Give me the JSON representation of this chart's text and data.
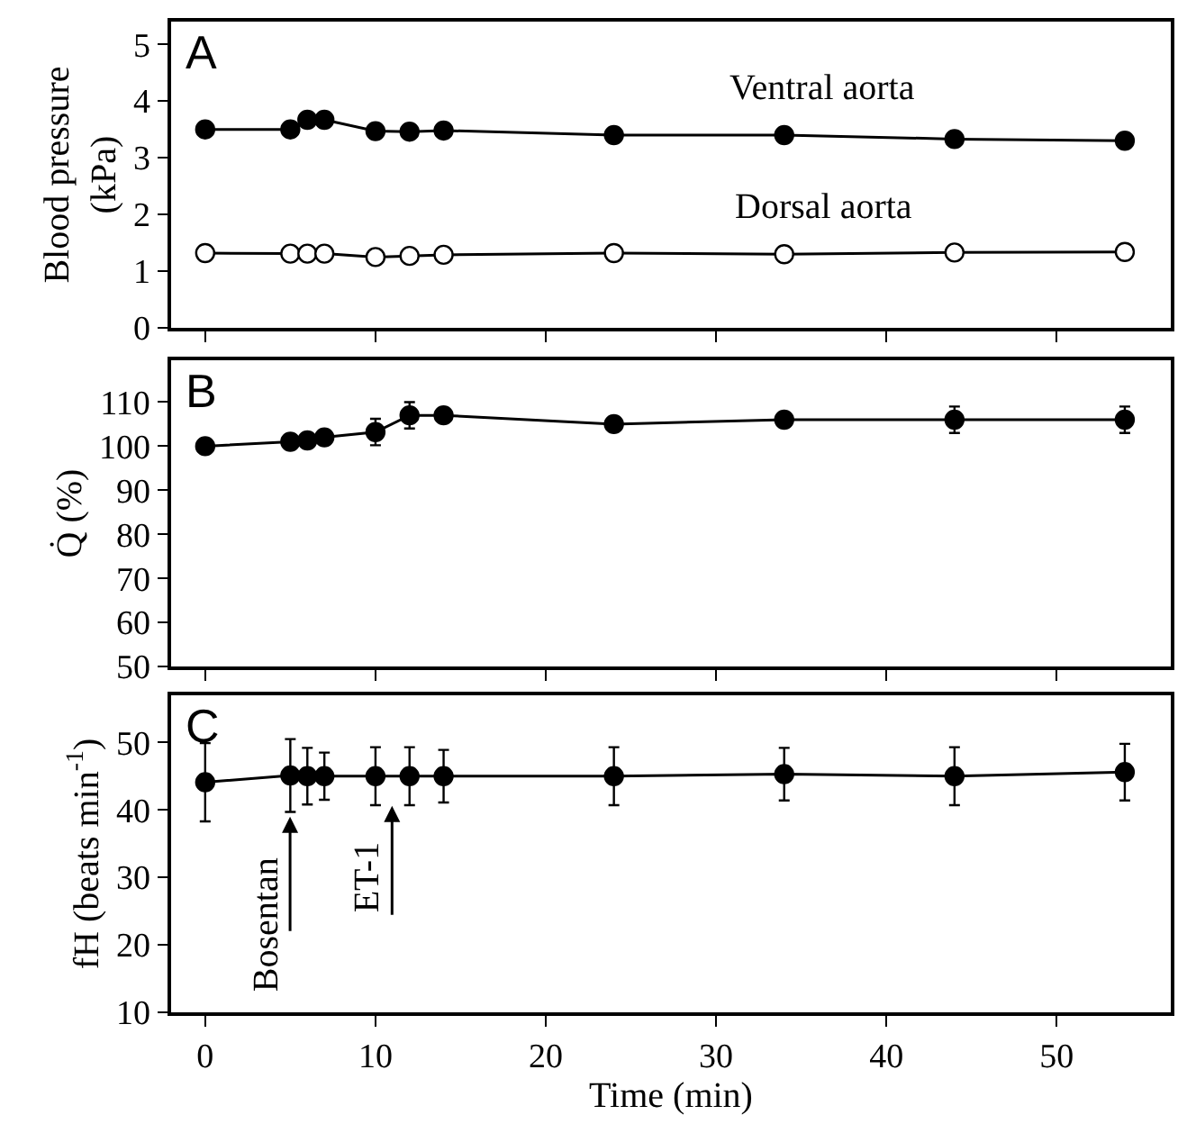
{
  "chart_data": [
    {
      "type": "line",
      "title": "A",
      "ylabel": "Blood pressure\n(kPa)",
      "x": [
        0,
        5,
        6,
        7,
        10,
        12,
        14,
        24,
        34,
        44,
        54
      ],
      "xlim": [
        -2,
        56.7
      ],
      "xticks": [
        {
          "value": 0,
          "label": null
        },
        {
          "value": 10,
          "label": null
        },
        {
          "value": 20,
          "label": null
        },
        {
          "value": 30,
          "label": null
        },
        {
          "value": 40,
          "label": null
        },
        {
          "value": 50,
          "label": null
        }
      ],
      "ylim": [
        0,
        5.4
      ],
      "yticks": [
        0,
        1,
        2,
        3,
        4,
        5
      ],
      "tick_labels": "y",
      "marker": "circle",
      "legend": false,
      "series": [
        {
          "name": "Ventral aorta",
          "color": "#000000",
          "values": [
            3.5,
            3.5,
            3.67,
            3.67,
            3.47,
            3.46,
            3.48,
            3.4,
            3.4,
            3.33,
            3.3
          ]
        },
        {
          "name": "Dorsal aorta",
          "color": "#ffffff",
          "values": [
            1.32,
            1.31,
            1.31,
            1.31,
            1.25,
            1.27,
            1.29,
            1.32,
            1.3,
            1.33,
            1.34
          ]
        }
      ]
    },
    {
      "type": "line",
      "title": "B",
      "ylabel": "Q̇ (%)",
      "x": [
        0,
        5,
        6,
        7,
        10,
        12,
        14,
        24,
        34,
        44,
        54
      ],
      "xlim": [
        -2,
        56.7
      ],
      "xticks": [
        {
          "value": 0,
          "label": null
        },
        {
          "value": 10,
          "label": null
        },
        {
          "value": 20,
          "label": null
        },
        {
          "value": 30,
          "label": null
        },
        {
          "value": 40,
          "label": null
        },
        {
          "value": 50,
          "label": null
        }
      ],
      "ylim": [
        50,
        119.5
      ],
      "yticks": [
        50,
        60,
        70,
        80,
        90,
        100,
        110
      ],
      "tick_labels": "y",
      "marker": "circle",
      "legend": false,
      "series": [
        {
          "color": "#000000",
          "values": [
            100,
            101,
            101.3,
            102,
            103.2,
            107,
            107,
            105,
            106,
            106,
            106
          ],
          "errors": [
            null,
            null,
            null,
            null,
            3,
            3,
            null,
            null,
            null,
            3,
            3
          ]
        }
      ]
    },
    {
      "type": "line",
      "title": "C",
      "ylabel": "fH (beats min$^{-1}$)",
      "xlabel": "Time (min)",
      "x": [
        0,
        5,
        6,
        7,
        10,
        12,
        14,
        24,
        34,
        44,
        54
      ],
      "xlim": [
        -2,
        56.7
      ],
      "xticks": [
        0,
        10,
        20,
        30,
        40,
        50
      ],
      "ylim": [
        10,
        57
      ],
      "yticks": [
        10,
        20,
        30,
        40,
        50
      ],
      "marker": "circle",
      "legend": false,
      "series": [
        {
          "color": "#000000",
          "values": [
            44.1,
            45.1,
            45,
            45,
            45,
            45,
            45,
            45,
            45.3,
            45,
            45.6
          ],
          "errors": [
            5.8,
            5.4,
            4.2,
            3.5,
            4.3,
            4.3,
            3.9,
            4.3,
            3.9,
            4.3,
            4.2
          ]
        }
      ],
      "annotations": [
        "Bosentan",
        "ET-1"
      ]
    }
  ]
}
